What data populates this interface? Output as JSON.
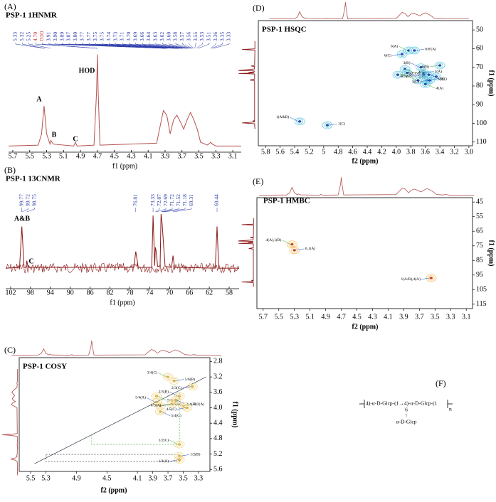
{
  "chart_data": [
    {
      "type": "line",
      "panel": "(A)",
      "title": "PSP-1 1HNMR",
      "x_label": "f1 (ppm)",
      "color": "#b5534f",
      "label_color": "#2b3aa8",
      "highlight_color": "#d03030",
      "highlight": [
        3,
        4
      ],
      "peak_labels": [
        "5.33",
        "5.32",
        "5.25",
        "4.70",
        "D2O",
        "3.91",
        "3.90",
        "3.89",
        "3.87",
        "3.80",
        "3.77",
        "3.77",
        "3.75",
        "3.75",
        "3.74",
        "3.73",
        "3.71",
        "3.70",
        "3.69",
        "3.66",
        "3.64",
        "3.63",
        "3.62",
        "3.60",
        "3.58",
        "3.57",
        "3.56",
        "3.55",
        "3.53",
        "3.51",
        "3.36",
        "3.35",
        "3.33"
      ],
      "annotations": [
        "A",
        "B",
        "C",
        "HOD"
      ],
      "x": [
        5.75,
        5.4,
        5.36,
        5.33,
        5.3,
        5.26,
        5.25,
        5.22,
        4.98,
        4.96,
        4.94,
        4.74,
        4.71,
        4.7,
        4.69,
        4.67,
        4.0,
        3.92,
        3.88,
        3.84,
        3.8,
        3.76,
        3.72,
        3.68,
        3.64,
        3.6,
        3.56,
        3.52,
        3.48,
        3.4,
        3.36,
        3.34,
        3.3,
        3.0
      ],
      "values": [
        2,
        3,
        15,
        45,
        15,
        4,
        8,
        4,
        2,
        6,
        2,
        3,
        60,
        100,
        60,
        3,
        5,
        40,
        35,
        15,
        30,
        35,
        28,
        20,
        30,
        38,
        30,
        20,
        6,
        3,
        6,
        4,
        2,
        2
      ],
      "xlim": [
        5.75,
        3.0
      ],
      "ylim": [
        0,
        105
      ],
      "xticks": [
        5.7,
        5.5,
        5.3,
        5.1,
        4.9,
        4.7,
        4.5,
        4.3,
        4.1,
        3.9,
        3.7,
        3.5,
        3.3,
        3.1
      ]
    },
    {
      "type": "line",
      "panel": "(B)",
      "title": "PSP-1 13CNMR",
      "x_label": "f1 (ppm)",
      "color": "#8b1a1a",
      "label_color": "#2b3aa8",
      "peak_labels": [
        "99.77",
        "99.72",
        "98.75",
        "76.81",
        "73.33",
        "72.87",
        "72.69",
        "71.72",
        "71.52",
        "71.18",
        "69.31",
        "60.44"
      ],
      "annotations": [
        "A&B",
        "C"
      ],
      "x": [
        103,
        100.2,
        99.75,
        99.3,
        98.9,
        98.75,
        98.5,
        77.2,
        76.81,
        76.3,
        73.6,
        73.33,
        73.0,
        72.87,
        72.69,
        72.4,
        71.9,
        71.72,
        71.52,
        71.18,
        70.9,
        69.6,
        69.31,
        69.0,
        60.8,
        60.44,
        60.1,
        56
      ],
      "values": [
        5,
        6,
        55,
        6,
        6,
        14,
        6,
        6,
        25,
        6,
        6,
        68,
        8,
        30,
        25,
        7,
        8,
        70,
        60,
        30,
        7,
        6,
        20,
        6,
        5,
        55,
        5,
        5
      ],
      "xlim": [
        103,
        56
      ],
      "ylim": [
        0,
        75
      ],
      "xticks": [
        102,
        98,
        94,
        90,
        86,
        82,
        78,
        74,
        70,
        66,
        62,
        58
      ]
    },
    {
      "type": "contour",
      "panel": "(C)",
      "title": "PSP-1 COSY",
      "x_label": "f2 (ppm)",
      "y_label": "f1 (ppm)",
      "colors": [
        "#f0d890",
        "#e0b040"
      ],
      "peaks": [
        {
          "label": "3/4(C)",
          "x": 3.7,
          "y": 3.2
        },
        {
          "label": "5/6(B)",
          "x": 3.62,
          "y": 3.3
        },
        {
          "label": "2/3(C)",
          "x": 3.38,
          "y": 3.45
        },
        {
          "label": "5/6(A)",
          "x": 3.85,
          "y": 3.7
        },
        {
          "label": "5/4(A)",
          "x": 3.85,
          "y": 3.85
        },
        {
          "label": "4/5(B)",
          "x": 3.8,
          "y": 3.95
        },
        {
          "label": "4/3(A)",
          "x": 3.65,
          "y": 3.9
        },
        {
          "label": "3/4(B)",
          "x": 3.6,
          "y": 3.8
        },
        {
          "label": "2/3(B)",
          "x": 3.55,
          "y": 3.7
        },
        {
          "label": "3/2(A)",
          "x": 3.5,
          "y": 3.95
        },
        {
          "label": "4/5(C)",
          "x": 3.45,
          "y": 4.0
        },
        {
          "label": "5/4(C)",
          "x": 3.8,
          "y": 4.1
        },
        {
          "label": "1/2(C)",
          "x": 3.55,
          "y": 4.95
        },
        {
          "label": "1/2(B)",
          "x": 3.55,
          "y": 5.25
        },
        {
          "label": "1/2(A)",
          "x": 3.55,
          "y": 5.35
        }
      ],
      "xlim": [
        5.65,
        3.15
      ],
      "ylim": [
        2.7,
        5.65
      ],
      "xticks": [
        5.5,
        5.3,
        4.9,
        4.5,
        4.1,
        3.9,
        3.7,
        3.5,
        3.3
      ],
      "yticks": [
        2.8,
        3.2,
        3.6,
        {
          "value": 4,
          "label": "4.0"
        },
        4.4,
        4.8,
        5.2,
        5.6
      ]
    },
    {
      "type": "contour",
      "panel": "(D)",
      "title": "PSP-1 HSQC",
      "x_label": "f2 (ppm)",
      "y_label": "f1 (ppm)",
      "colors": [
        "#60c8e0",
        "#2050b0"
      ],
      "peaks": [
        {
          "label": "6(A)",
          "x": 3.83,
          "y": 61
        },
        {
          "label": "6/6'(A)",
          "x": 3.75,
          "y": 61
        },
        {
          "label": "6(C)",
          "x": 3.92,
          "y": 63
        },
        {
          "label": "5(B)",
          "x": 3.88,
          "y": 71
        },
        {
          "label": "3(B)",
          "x": 3.66,
          "y": 70
        },
        {
          "label": "2(A)",
          "x": 3.62,
          "y": 73
        },
        {
          "label": "6(B)",
          "x": 3.4,
          "y": 69
        },
        {
          "label": "5(A)",
          "x": 3.85,
          "y": 73
        },
        {
          "label": "4(C)",
          "x": 3.45,
          "y": 75
        },
        {
          "label": "5(C)",
          "x": 3.98,
          "y": 74
        },
        {
          "label": "2(B)",
          "x": 3.62,
          "y": 74
        },
        {
          "label": "2(C)",
          "x": 3.55,
          "y": 74
        },
        {
          "label": "4(B)",
          "x": 3.7,
          "y": 77
        },
        {
          "label": "3(A)",
          "x": 3.58,
          "y": 77
        },
        {
          "label": "3(C)",
          "x": 3.54,
          "y": 77
        },
        {
          "label": "4(A)",
          "x": 3.6,
          "y": 79
        },
        {
          "label": "1(A&B)",
          "x": 5.33,
          "y": 99
        },
        {
          "label": "1(C)",
          "x": 4.95,
          "y": 101
        }
      ],
      "xlim": [
        5.9,
        2.95
      ],
      "ylim": [
        45,
        112
      ],
      "xticks": [
        5.8,
        5.6,
        5.4,
        5.2,
        5.0,
        4.8,
        4.6,
        4.4,
        4.2,
        {
          "value": 4,
          "label": "4.0"
        },
        3.8,
        3.6,
        3.4,
        3.2,
        {
          "value": 3,
          "label": "3.0"
        }
      ],
      "yticks": [
        50,
        60,
        70,
        80,
        90,
        100,
        110
      ]
    },
    {
      "type": "contour",
      "panel": "(E)",
      "title": "PSP-1 HMBC",
      "x_label": "f2 (ppm)",
      "y_label": "f1 (ppm)",
      "colors": [
        "#f5c060",
        "#d04020"
      ],
      "peaks": [
        {
          "label": "4(A),1(B)",
          "x": 5.33,
          "y": 74
        },
        {
          "label": "6,1(A)",
          "x": 5.3,
          "y": 78
        },
        {
          "label": "1(A/B),4(A)",
          "x": 3.55,
          "y": 97
        }
      ],
      "xlim": [
        5.78,
        3.02
      ],
      "ylim": [
        42,
        118
      ],
      "xticks": [
        5.7,
        5.5,
        5.3,
        5.1,
        4.9,
        4.7,
        4.5,
        4.3,
        4.1,
        3.9,
        3.7,
        3.5,
        3.3,
        3.1
      ],
      "yticks": [
        45,
        55,
        65,
        75,
        85,
        95,
        105,
        115
      ]
    }
  ],
  "structure": {
    "panel": "(F)",
    "chain": "4)-α-D-Glcp-(1→4)-α-D-Glcp-(1",
    "repeat": "n",
    "position": "6",
    "arrow": "↑",
    "branch": "α-D-Glcp"
  }
}
